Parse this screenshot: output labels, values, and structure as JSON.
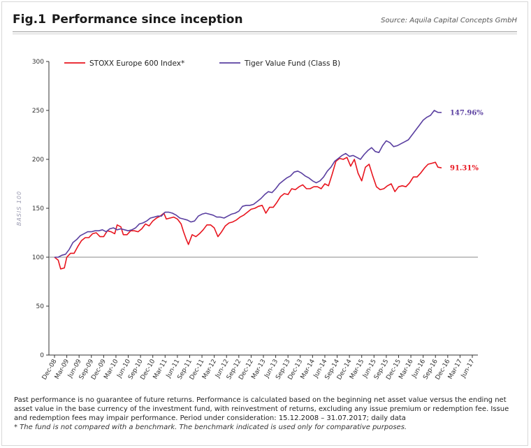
{
  "header": {
    "fig_number": "Fig.1",
    "title": "Performance since inception",
    "source": "Source: Aquila Capital Concepts GmbH"
  },
  "footnote": {
    "text": "Past performance is no guarantee of future returns. Performance is calculated based on the beginning net asset value versus the ending net asset value in the base currency of the investment fund, with reinvestment of returns, excluding any issue premium or redemption fee. Issue and redemption fees may impair performance. Period under consideration: 15.12.2008 – 31.07.2017; daily data",
    "italic": "* The fund is not compared with a benchmark. The benchmark indicated is used only for comparative purposes."
  },
  "chart_data": {
    "type": "line",
    "ylabel": "BASIS 100",
    "xlabel": "",
    "ylim": [
      0,
      300
    ],
    "yticks": [
      0,
      50,
      100,
      150,
      200,
      250,
      300
    ],
    "grid": false,
    "reference_line": 100,
    "legend_position": "top-left",
    "x_tick_labels": [
      "Dec-08",
      "Mar-09",
      "Jun-09",
      "Sep-09",
      "Dec-09",
      "Mar-10",
      "Jun-10",
      "Sep-10",
      "Dec-10",
      "Mar-11",
      "Jun-11",
      "Sep-11",
      "Dec-11",
      "Mar-12",
      "Jun-12",
      "Sep-12",
      "Dec-12",
      "Mar-13",
      "Jun-13",
      "Sep-13",
      "Dec-13",
      "Mar-14",
      "Jun-14",
      "Sep-14",
      "Dec-14",
      "Mar-15",
      "Jun-15",
      "Sep-15",
      "Dec-15",
      "Mar-16",
      "Jun-16",
      "Sep-16",
      "Dec-16",
      "Mar-17",
      "Jun-17"
    ],
    "series": [
      {
        "name": "STOXX Europe 600 Index*",
        "color": "#e8141e",
        "end_label": "91.31%",
        "points": [
          [
            0,
            100
          ],
          [
            0.3,
            97
          ],
          [
            0.5,
            88
          ],
          [
            0.8,
            89
          ],
          [
            1.0,
            100
          ],
          [
            1.3,
            104
          ],
          [
            1.6,
            104
          ],
          [
            1.9,
            111
          ],
          [
            2.2,
            117
          ],
          [
            2.5,
            120
          ],
          [
            2.8,
            120
          ],
          [
            3.1,
            124
          ],
          [
            3.4,
            125
          ],
          [
            3.7,
            121
          ],
          [
            4.0,
            121
          ],
          [
            4.3,
            127
          ],
          [
            4.6,
            126
          ],
          [
            4.9,
            124
          ],
          [
            5.1,
            133
          ],
          [
            5.4,
            131
          ],
          [
            5.6,
            123
          ],
          [
            5.9,
            123
          ],
          [
            6.2,
            127
          ],
          [
            6.5,
            127
          ],
          [
            6.8,
            126
          ],
          [
            7.1,
            129
          ],
          [
            7.4,
            134
          ],
          [
            7.7,
            132
          ],
          [
            8.0,
            137
          ],
          [
            8.3,
            140
          ],
          [
            8.6,
            142
          ],
          [
            8.9,
            145
          ],
          [
            9.1,
            139
          ],
          [
            9.4,
            140
          ],
          [
            9.7,
            141
          ],
          [
            10.0,
            139
          ],
          [
            10.3,
            134
          ],
          [
            10.5,
            126
          ],
          [
            10.7,
            119
          ],
          [
            10.9,
            113
          ],
          [
            11.2,
            123
          ],
          [
            11.5,
            121
          ],
          [
            11.8,
            124
          ],
          [
            12.1,
            128
          ],
          [
            12.4,
            133
          ],
          [
            12.7,
            133
          ],
          [
            13.0,
            130
          ],
          [
            13.3,
            121
          ],
          [
            13.6,
            126
          ],
          [
            13.9,
            132
          ],
          [
            14.2,
            135
          ],
          [
            14.5,
            136
          ],
          [
            14.8,
            138
          ],
          [
            15.1,
            141
          ],
          [
            15.4,
            143
          ],
          [
            15.7,
            146
          ],
          [
            16.0,
            149
          ],
          [
            16.3,
            150
          ],
          [
            16.6,
            152
          ],
          [
            16.9,
            153
          ],
          [
            17.2,
            145
          ],
          [
            17.5,
            151
          ],
          [
            17.8,
            151
          ],
          [
            18.1,
            156
          ],
          [
            18.4,
            162
          ],
          [
            18.7,
            165
          ],
          [
            19.0,
            164
          ],
          [
            19.3,
            170
          ],
          [
            19.6,
            169
          ],
          [
            19.9,
            172
          ],
          [
            20.2,
            174
          ],
          [
            20.5,
            170
          ],
          [
            20.8,
            170
          ],
          [
            21.1,
            172
          ],
          [
            21.4,
            172
          ],
          [
            21.7,
            170
          ],
          [
            22.0,
            175
          ],
          [
            22.3,
            173
          ],
          [
            22.6,
            185
          ],
          [
            22.9,
            198
          ],
          [
            23.2,
            201
          ],
          [
            23.5,
            200
          ],
          [
            23.8,
            202
          ],
          [
            24.1,
            193
          ],
          [
            24.4,
            200
          ],
          [
            24.7,
            186
          ],
          [
            25.0,
            178
          ],
          [
            25.3,
            192
          ],
          [
            25.6,
            195
          ],
          [
            25.9,
            183
          ],
          [
            26.2,
            172
          ],
          [
            26.5,
            169
          ],
          [
            26.8,
            170
          ],
          [
            27.1,
            173
          ],
          [
            27.4,
            175
          ],
          [
            27.7,
            167
          ],
          [
            28.0,
            172
          ],
          [
            28.3,
            173
          ],
          [
            28.6,
            172
          ],
          [
            28.9,
            176
          ],
          [
            29.2,
            182
          ],
          [
            29.5,
            182
          ],
          [
            29.8,
            186
          ],
          [
            30.1,
            191
          ],
          [
            30.4,
            195
          ],
          [
            30.7,
            196
          ],
          [
            31.0,
            197
          ],
          [
            31.2,
            192
          ],
          [
            31.5,
            191.3
          ]
        ]
      },
      {
        "name": "Tiger Value Fund (Class B)",
        "color": "#5a3fa0",
        "end_label": "147.96%",
        "points": [
          [
            0,
            100
          ],
          [
            0.3,
            100
          ],
          [
            0.6,
            102
          ],
          [
            0.9,
            103
          ],
          [
            1.2,
            108
          ],
          [
            1.5,
            115
          ],
          [
            1.8,
            118
          ],
          [
            2.1,
            122
          ],
          [
            2.4,
            124
          ],
          [
            2.7,
            126
          ],
          [
            3.0,
            126
          ],
          [
            3.3,
            127
          ],
          [
            3.6,
            127
          ],
          [
            3.9,
            128
          ],
          [
            4.2,
            126
          ],
          [
            4.5,
            129
          ],
          [
            4.8,
            130
          ],
          [
            5.1,
            128
          ],
          [
            5.4,
            129
          ],
          [
            5.7,
            128
          ],
          [
            6.0,
            127
          ],
          [
            6.3,
            128
          ],
          [
            6.6,
            130
          ],
          [
            6.9,
            134
          ],
          [
            7.2,
            135
          ],
          [
            7.5,
            137
          ],
          [
            7.8,
            140
          ],
          [
            8.1,
            141
          ],
          [
            8.4,
            142
          ],
          [
            8.7,
            142
          ],
          [
            9.0,
            146
          ],
          [
            9.3,
            146
          ],
          [
            9.6,
            145
          ],
          [
            9.9,
            143
          ],
          [
            10.2,
            140
          ],
          [
            10.5,
            139
          ],
          [
            10.8,
            138
          ],
          [
            11.1,
            136
          ],
          [
            11.4,
            137
          ],
          [
            11.7,
            142
          ],
          [
            12.0,
            144
          ],
          [
            12.3,
            145
          ],
          [
            12.6,
            144
          ],
          [
            12.9,
            143
          ],
          [
            13.2,
            141
          ],
          [
            13.5,
            141
          ],
          [
            13.8,
            140
          ],
          [
            14.1,
            142
          ],
          [
            14.4,
            144
          ],
          [
            14.7,
            145
          ],
          [
            15.0,
            147
          ],
          [
            15.3,
            152
          ],
          [
            15.6,
            153
          ],
          [
            15.9,
            153
          ],
          [
            16.2,
            154
          ],
          [
            16.5,
            157
          ],
          [
            16.8,
            160
          ],
          [
            17.1,
            164
          ],
          [
            17.4,
            167
          ],
          [
            17.7,
            166
          ],
          [
            18.0,
            170
          ],
          [
            18.3,
            175
          ],
          [
            18.6,
            178
          ],
          [
            18.9,
            181
          ],
          [
            19.2,
            183
          ],
          [
            19.5,
            187
          ],
          [
            19.8,
            188
          ],
          [
            20.1,
            186
          ],
          [
            20.4,
            183
          ],
          [
            20.7,
            181
          ],
          [
            21.0,
            178
          ],
          [
            21.3,
            176
          ],
          [
            21.6,
            178
          ],
          [
            21.9,
            182
          ],
          [
            22.2,
            188
          ],
          [
            22.5,
            192
          ],
          [
            22.8,
            198
          ],
          [
            23.1,
            201
          ],
          [
            23.4,
            204
          ],
          [
            23.7,
            206
          ],
          [
            24.0,
            203
          ],
          [
            24.3,
            204
          ],
          [
            24.6,
            202
          ],
          [
            24.9,
            200
          ],
          [
            25.2,
            205
          ],
          [
            25.5,
            209
          ],
          [
            25.8,
            212
          ],
          [
            26.1,
            208
          ],
          [
            26.4,
            207
          ],
          [
            26.7,
            214
          ],
          [
            27.0,
            219
          ],
          [
            27.3,
            217
          ],
          [
            27.6,
            213
          ],
          [
            27.9,
            214
          ],
          [
            28.2,
            216
          ],
          [
            28.5,
            218
          ],
          [
            28.8,
            220
          ],
          [
            29.1,
            225
          ],
          [
            29.4,
            230
          ],
          [
            29.7,
            235
          ],
          [
            30.0,
            240
          ],
          [
            30.3,
            243
          ],
          [
            30.6,
            245
          ],
          [
            30.9,
            250
          ],
          [
            31.2,
            248
          ],
          [
            31.5,
            247.96
          ]
        ]
      }
    ]
  }
}
